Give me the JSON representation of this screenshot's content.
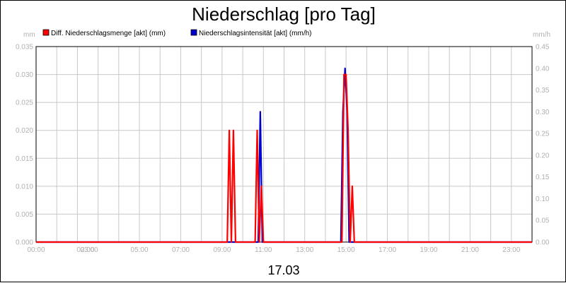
{
  "colors": {
    "precip_amount": "#ff0000",
    "precip_intensity": "#0000cc",
    "grid": "#c8c8c8",
    "axis_text": "#b0b0b0"
  },
  "chart_data": {
    "type": "line",
    "title": "Niederschlag [pro Tag]",
    "xlabel": "17.03",
    "y_left_unit": "mm",
    "y_right_unit": "mm/h",
    "ylim_left": [
      0,
      0.035
    ],
    "ylim_right": [
      0,
      0.45
    ],
    "xlim_hours": [
      0,
      24
    ],
    "grid": true,
    "legend_position": "top-left",
    "x_ticks": [
      {
        "h": 0,
        "label": "00:00"
      },
      {
        "h": 2,
        "label": "02:00"
      },
      {
        "h": 3,
        "label": "03:00"
      },
      {
        "h": 5,
        "label": "05:00"
      },
      {
        "h": 7,
        "label": "07:00"
      },
      {
        "h": 9,
        "label": "09:00"
      },
      {
        "h": 11,
        "label": "11:00"
      },
      {
        "h": 13,
        "label": "13:00"
      },
      {
        "h": 15,
        "label": "15:00"
      },
      {
        "h": 17,
        "label": "17:00"
      },
      {
        "h": 19,
        "label": "19:00"
      },
      {
        "h": 21,
        "label": "21:00"
      },
      {
        "h": 23,
        "label": "23:00"
      }
    ],
    "y_left_ticks": [
      "0.000",
      "0.005",
      "0.010",
      "0.015",
      "0.020",
      "0.025",
      "0.030",
      "0.035"
    ],
    "y_right_ticks": [
      "0.00",
      "0.05",
      "0.10",
      "0.15",
      "0.20",
      "0.25",
      "0.30",
      "0.35",
      "0.40",
      "0.45"
    ],
    "series": [
      {
        "name": "Diff. Niederschlagsmenge [akt] (mm)",
        "axis": "left",
        "color": "#ff0000",
        "x": [
          0,
          9.25,
          9.35,
          9.45,
          9.55,
          9.65,
          10.6,
          10.7,
          10.8,
          10.9,
          11.0,
          11.1,
          14.8,
          14.9,
          15.0,
          15.1,
          15.2,
          15.3,
          15.4,
          15.5,
          24
        ],
        "y": [
          0,
          0,
          0.02,
          0,
          0.02,
          0,
          0,
          0.02,
          0,
          0.01,
          0,
          0,
          0,
          0.03,
          0.03,
          0.02,
          0,
          0.01,
          0,
          0,
          0
        ]
      },
      {
        "name": "Niederschlagsintensität [akt] (mm/h)",
        "axis": "right",
        "color": "#0000cc",
        "x": [
          0,
          10.75,
          10.85,
          10.95,
          11.05,
          14.75,
          14.85,
          14.95,
          15.05,
          15.15,
          24
        ],
        "y": [
          0,
          0,
          0.3,
          0,
          0,
          0,
          0.3,
          0.4,
          0.3,
          0,
          0
        ]
      }
    ]
  }
}
